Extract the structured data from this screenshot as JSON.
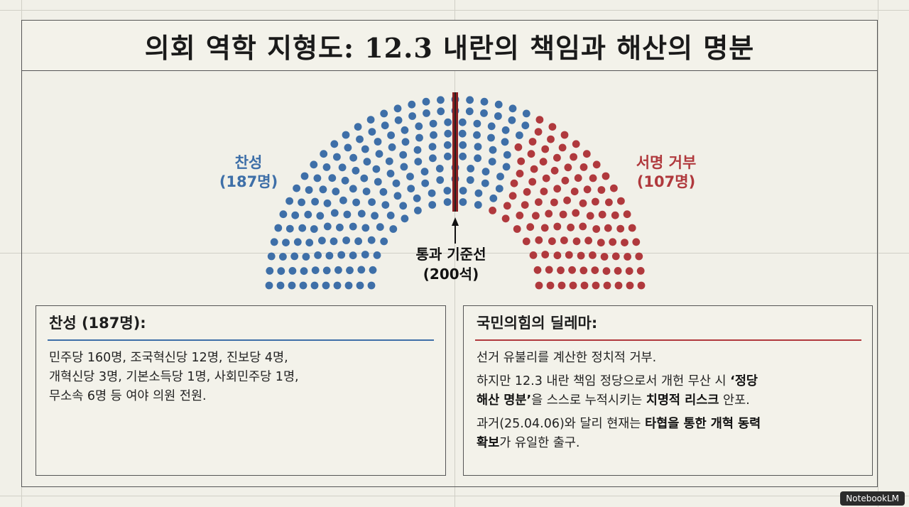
{
  "title": "의회 역학 지형도: 12.3 내란의 책임과 해산의 명분",
  "colors": {
    "yes": "#3e6fa8",
    "no": "#b0393d",
    "threshold": "#8a1f22"
  },
  "chart_data": {
    "type": "hemicycle",
    "total_seats": 294,
    "series": [
      {
        "name": "찬성",
        "values": [
          187
        ],
        "color": "#3e6fa8"
      },
      {
        "name": "서명 거부",
        "values": [
          107
        ],
        "color": "#b0393d"
      }
    ],
    "threshold": {
      "value": 200,
      "label": "통과 기준선",
      "sublabel": "(200석)"
    }
  },
  "labels": {
    "yes_name": "찬성",
    "yes_count": "(187명)",
    "no_name": "서명 거부",
    "no_count": "(107명)"
  },
  "left_card": {
    "heading": "찬성 (187명):",
    "lines": [
      "민주당 160명, 조국혁신당 12명, 진보당 4명,",
      "개혁신당 3명, 기본소득당 1명, 사회민주당 1명,",
      "무소속 6명 등 여야 의원 전원."
    ]
  },
  "right_card": {
    "heading": "국민의힘의 딜레마:",
    "p1": "선거 유불리를 계산한 정치적 거부.",
    "p2_a": "하지만 12.3 내란 책임 정당으로서 개헌 무산 시 ",
    "p2_b": "‘정당",
    "p2_c": "해산 명분’",
    "p2_d": "을 스스로 누적시키는 ",
    "p2_e": "치명적 리스크",
    "p2_f": " 안포.",
    "p3_a": "과거(25.04.06)와 달리 현재는 ",
    "p3_b": "타협을 통한 개혁 동력",
    "p3_c": "확보",
    "p3_d": "가 유일한 출구."
  },
  "badge": "NotebookLM"
}
